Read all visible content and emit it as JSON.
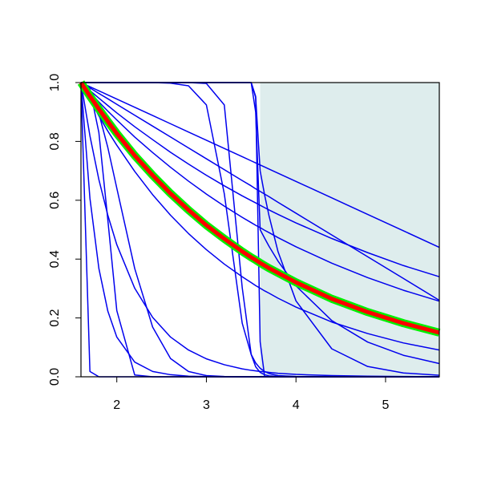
{
  "chart_data": {
    "type": "line",
    "x": [
      1.6,
      1.7,
      1.8,
      1.9,
      2.0,
      2.2,
      2.4,
      2.6,
      2.8,
      3.0,
      3.2,
      3.4,
      3.5,
      3.55,
      3.6,
      3.65,
      3.7,
      3.8,
      4.0,
      4.4,
      4.8,
      5.2,
      5.6
    ],
    "xlim": [
      1.6,
      5.6
    ],
    "ylim": [
      0,
      1
    ],
    "xticks": [
      2,
      3,
      4,
      5
    ],
    "yticks": [
      {
        "value": 0,
        "label": "0.0"
      },
      {
        "value": 0.2,
        "label": "0.2"
      },
      {
        "value": 0.4,
        "label": "0.4"
      },
      {
        "value": 0.6,
        "label": "0.6"
      },
      {
        "value": 0.8,
        "label": "0.8"
      },
      {
        "value": 1,
        "label": "1.0"
      }
    ],
    "shaded_region": {
      "xlim": [
        3.6,
        5.6
      ],
      "color": "#deeded"
    },
    "series": [
      {
        "color": "#0000ee",
        "line_width": 1.5,
        "values": [
          1,
          0.986,
          0.972,
          0.958,
          0.944,
          0.916,
          0.888,
          0.86,
          0.832,
          0.804,
          0.776,
          0.748,
          0.734,
          0.727,
          0.72,
          0.713,
          0.706,
          0.692,
          0.664,
          0.608,
          0.552,
          0.496,
          0.44
        ]
      },
      {
        "color": "#0000ee",
        "line_width": 1.5,
        "values": [
          1,
          0.973,
          0.947,
          0.922,
          0.897,
          0.85,
          0.806,
          0.763,
          0.723,
          0.685,
          0.649,
          0.615,
          0.599,
          0.591,
          0.583,
          0.575,
          0.567,
          0.552,
          0.523,
          0.47,
          0.422,
          0.378,
          0.34
        ]
      },
      {
        "color": "#0000ee",
        "line_width": 1.5,
        "values": [
          1,
          0.967,
          0.934,
          0.903,
          0.873,
          0.815,
          0.762,
          0.712,
          0.665,
          0.621,
          0.58,
          0.542,
          0.524,
          0.515,
          0.507,
          0.498,
          0.49,
          0.473,
          0.442,
          0.386,
          0.337,
          0.294,
          0.257
        ]
      },
      {
        "color": "#0000ee",
        "line_width": 1.5,
        "values": [
          1,
          0.982,
          0.963,
          0.945,
          0.926,
          0.889,
          0.852,
          0.815,
          0.778,
          0.741,
          0.704,
          0.667,
          0.649,
          0.639,
          0.63,
          0.621,
          0.612,
          0.593,
          0.556,
          0.482,
          0.408,
          0.334,
          0.26
        ]
      },
      {
        "color": "#0000ee",
        "line_width": 1.5,
        "values": [
          1,
          0.942,
          0.887,
          0.835,
          0.787,
          0.698,
          0.619,
          0.549,
          0.487,
          0.432,
          0.383,
          0.34,
          0.32,
          0.31,
          0.301,
          0.292,
          0.284,
          0.267,
          0.237,
          0.186,
          0.147,
          0.115,
          0.091
        ]
      },
      {
        "color": "#0000ee",
        "line_width": 1.5,
        "values": [
          1,
          1,
          1,
          1,
          1,
          1,
          1,
          1,
          1,
          1,
          1,
          1,
          1,
          0.953,
          0.119,
          0.001,
          0,
          0,
          0,
          0,
          0,
          0,
          0
        ]
      },
      {
        "color": "#0000ee",
        "line_width": 1.5,
        "values": [
          1,
          1,
          1,
          1,
          1,
          1,
          1,
          1,
          1,
          0.997,
          0.924,
          0.303,
          0.076,
          0.034,
          0.015,
          0.007,
          0.003,
          0.001,
          0,
          0,
          0,
          0,
          0
        ]
      },
      {
        "color": "#0000ee",
        "line_width": 1.5,
        "values": [
          1,
          1,
          1,
          1,
          1,
          1,
          1,
          0.998,
          0.989,
          0.924,
          0.622,
          0.182,
          0.076,
          0.047,
          0.029,
          0.018,
          0.011,
          0.004,
          0.001,
          0,
          0,
          0,
          0
        ]
      },
      {
        "color": "#0000ee",
        "line_width": 1.5,
        "values": [
          1,
          0.977,
          0.83,
          0.533,
          0.225,
          0.006,
          0,
          0,
          0,
          0,
          0,
          0,
          0,
          0,
          0,
          0,
          0,
          0,
          0,
          0,
          0,
          0,
          0
        ]
      },
      {
        "color": "#0000ee",
        "line_width": 1.5,
        "values": [
          1,
          0.607,
          0.368,
          0.223,
          0.135,
          0.05,
          0.018,
          0.007,
          0.002,
          0.001,
          0,
          0,
          0,
          0,
          0,
          0,
          0,
          0,
          0,
          0,
          0,
          0,
          0
        ]
      },
      {
        "color": "#0000ee",
        "line_width": 1.5,
        "values": [
          1,
          0.973,
          0.895,
          0.779,
          0.641,
          0.368,
          0.169,
          0.062,
          0.018,
          0.004,
          0.001,
          0,
          0,
          0,
          0,
          0,
          0,
          0,
          0,
          0,
          0,
          0,
          0
        ]
      },
      {
        "color": "#0000ee",
        "line_width": 1.5,
        "values": [
          1,
          0.819,
          0.67,
          0.549,
          0.449,
          0.301,
          0.202,
          0.135,
          0.091,
          0.061,
          0.041,
          0.027,
          0.022,
          0.02,
          0.018,
          0.017,
          0.015,
          0.012,
          0.008,
          0.004,
          0.002,
          0.001,
          0
        ]
      },
      {
        "color": "#0000ee",
        "line_width": 1.5,
        "values": [
          1,
          0.018,
          0,
          0,
          0,
          0,
          0,
          0,
          0,
          0,
          0,
          0,
          0,
          0,
          0,
          0,
          0,
          0,
          0,
          0,
          0,
          0,
          0
        ]
      },
      {
        "color": "#0000ee",
        "line_width": 1.5,
        "values": [
          1,
          1,
          1,
          1,
          1,
          1,
          1,
          1,
          1,
          1,
          1,
          1,
          1,
          0.95,
          0.7,
          0.618,
          0.546,
          0.425,
          0.258,
          0.095,
          0.035,
          0.013,
          0.005
        ]
      },
      {
        "color": "#0000ee",
        "line_width": 1.5,
        "values": [
          1,
          1,
          1,
          1,
          1,
          1,
          1,
          1,
          1,
          1,
          1,
          1,
          1,
          0.9,
          0.5,
          0.471,
          0.443,
          0.393,
          0.309,
          0.191,
          0.118,
          0.073,
          0.045
        ]
      },
      {
        "color": "#00ee00",
        "line_width": 10,
        "values": [
          1,
          0.954,
          0.91,
          0.868,
          0.827,
          0.752,
          0.685,
          0.623,
          0.567,
          0.515,
          0.469,
          0.426,
          0.406,
          0.397,
          0.387,
          0.378,
          0.369,
          0.353,
          0.321,
          0.265,
          0.22,
          0.182,
          0.15
        ]
      },
      {
        "color": "#ff0000",
        "line_width": 5,
        "values": [
          1,
          0.954,
          0.91,
          0.868,
          0.827,
          0.752,
          0.685,
          0.623,
          0.567,
          0.515,
          0.469,
          0.426,
          0.406,
          0.397,
          0.387,
          0.378,
          0.369,
          0.353,
          0.321,
          0.265,
          0.22,
          0.182,
          0.15
        ]
      }
    ]
  }
}
